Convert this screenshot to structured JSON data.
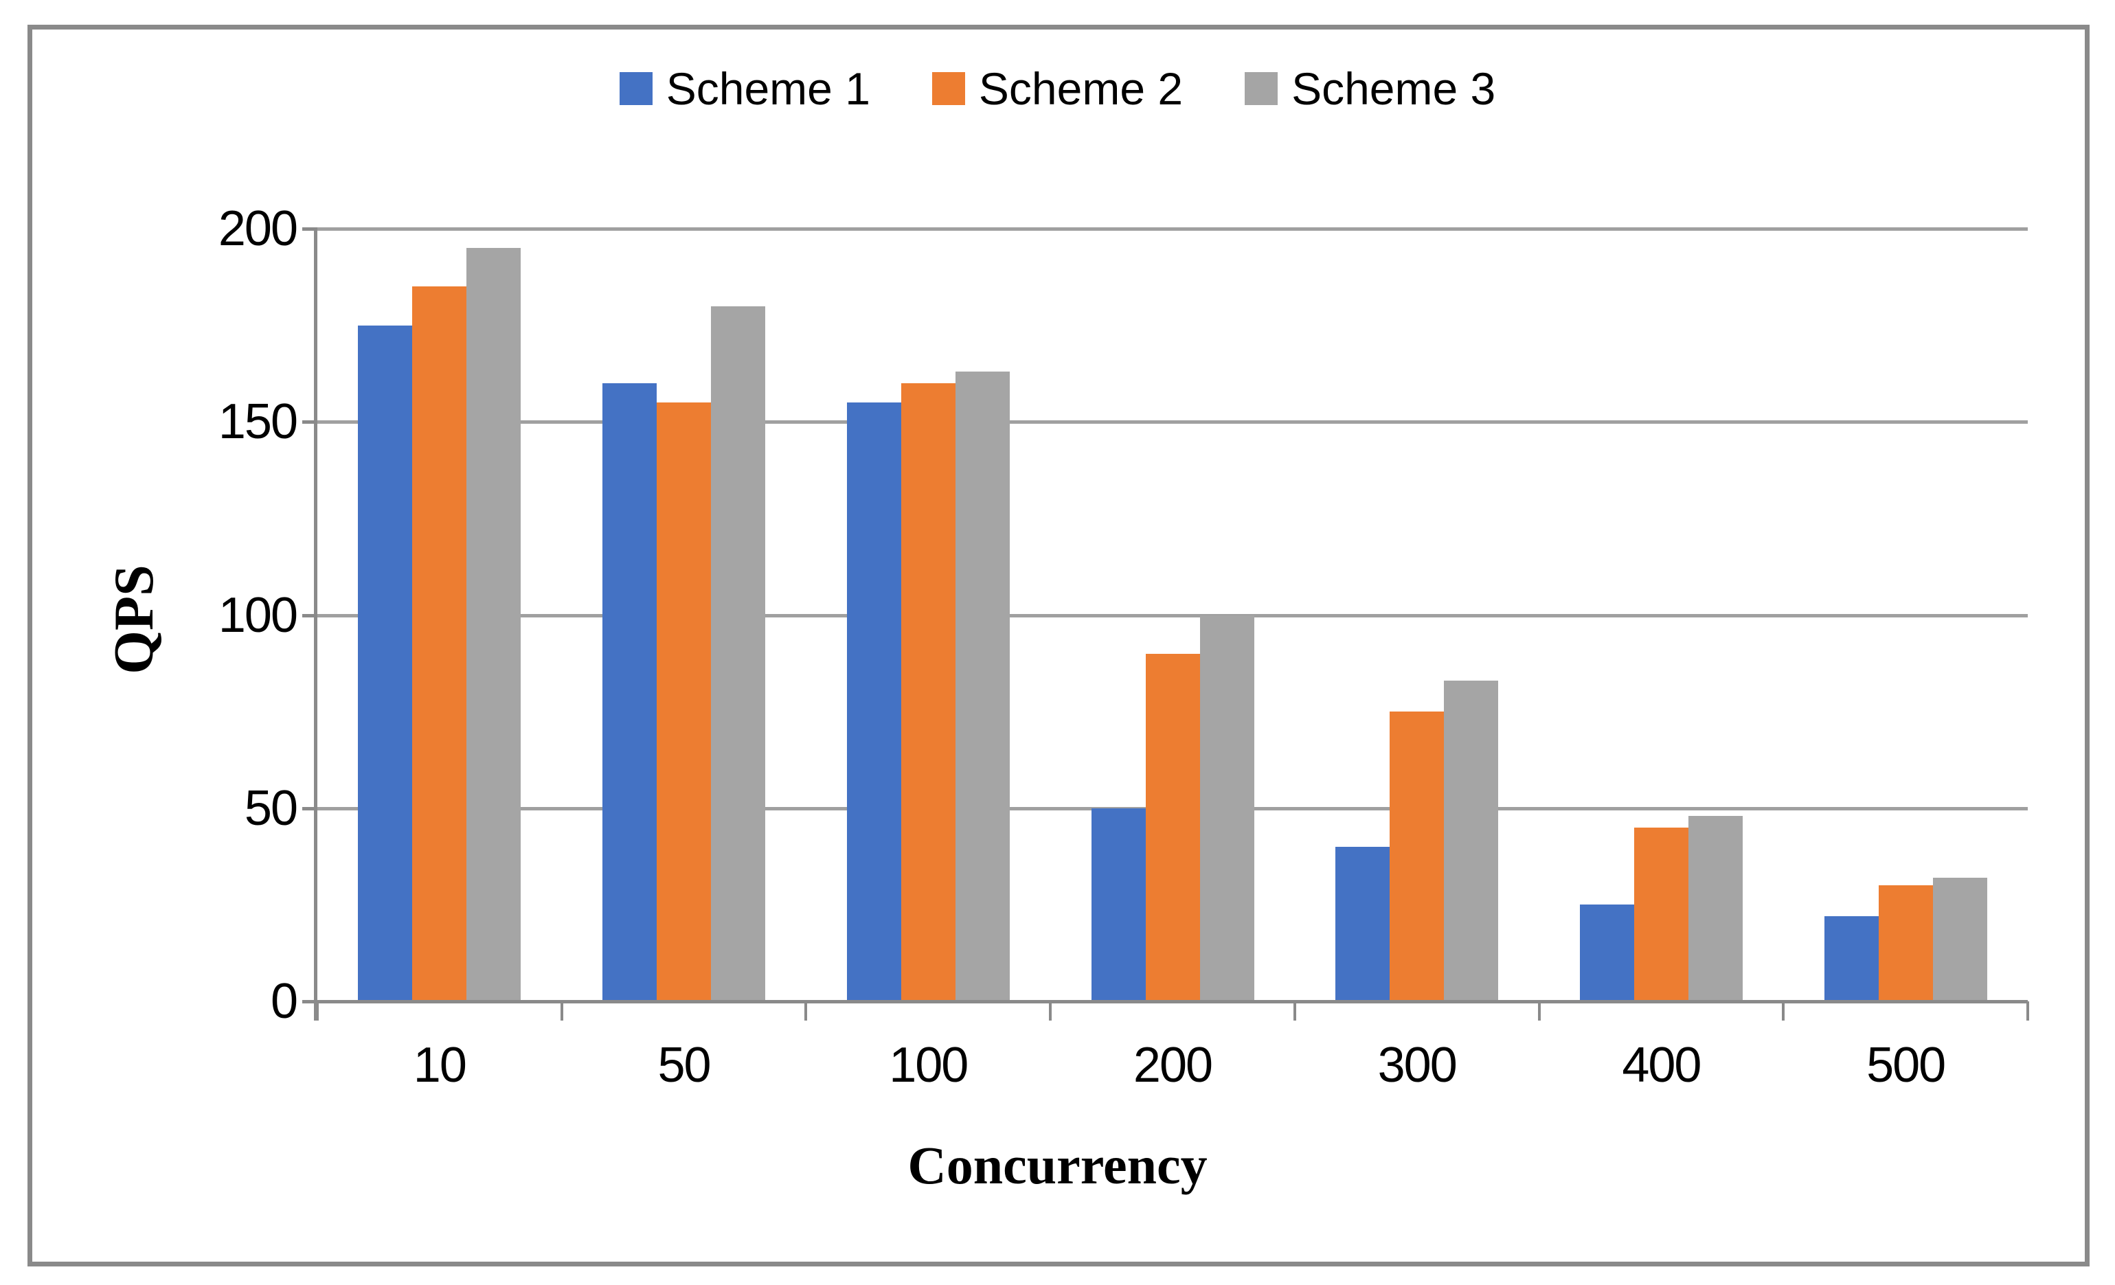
{
  "figure": {
    "background": "#ffffff",
    "border_color": "#8a8a8a"
  },
  "legend": {
    "items": [
      {
        "label": "Scheme 1",
        "color": "#4472C4"
      },
      {
        "label": "Scheme 2",
        "color": "#ED7D31"
      },
      {
        "label": "Scheme 3",
        "color": "#A5A5A5"
      }
    ]
  },
  "chart_data": {
    "type": "bar",
    "title": "",
    "categories": [
      "10",
      "50",
      "100",
      "200",
      "300",
      "400",
      "500"
    ],
    "series": [
      {
        "name": "Scheme 1",
        "color": "#4472C4",
        "values": [
          175,
          160,
          155,
          50,
          40,
          25,
          22
        ]
      },
      {
        "name": "Scheme 2",
        "color": "#ED7D31",
        "values": [
          185,
          155,
          160,
          90,
          75,
          45,
          30
        ]
      },
      {
        "name": "Scheme 3",
        "color": "#A5A5A5",
        "values": [
          195,
          180,
          163,
          100,
          83,
          48,
          32
        ]
      }
    ],
    "xlabel": "Concurrency",
    "ylabel": "QPS",
    "yticks": [
      0,
      50,
      100,
      150,
      200
    ],
    "ylim": [
      0,
      200
    ],
    "grid": true,
    "legend_position": "top-center",
    "axis_color": "#8a8a8a",
    "gridline_color": "#a0a0a0"
  }
}
